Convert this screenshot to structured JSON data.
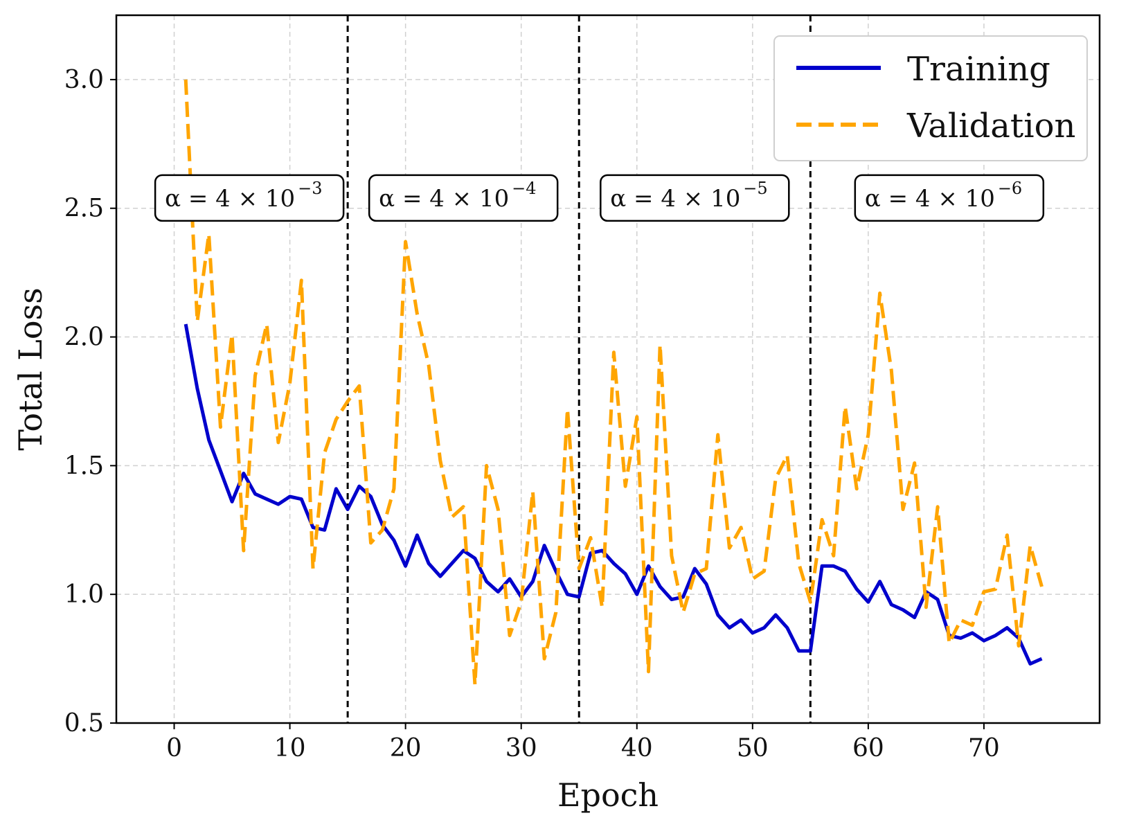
{
  "chart_data": {
    "type": "line",
    "title": "",
    "xlabel": "Epoch",
    "ylabel": "Total Loss",
    "xlim": [
      -5,
      80
    ],
    "ylim": [
      0.5,
      3.25
    ],
    "xticks": [
      "0",
      "10",
      "20",
      "30",
      "40",
      "50",
      "60",
      "70"
    ],
    "xtick_values": [
      0,
      10,
      20,
      30,
      40,
      50,
      60,
      70
    ],
    "yticks": [
      "0.5",
      "1.0",
      "1.5",
      "2.0",
      "2.5",
      "3.0"
    ],
    "ytick_values": [
      0.5,
      1.0,
      1.5,
      2.0,
      2.5,
      3.0
    ],
    "grid": true,
    "legend_position": "top-right",
    "phase_boundaries": [
      15,
      35,
      55
    ],
    "annotations": [
      {
        "text": "α = 4 × 10",
        "exponent": "−3",
        "x_center": 6.5
      },
      {
        "text": "α = 4 × 10",
        "exponent": "−4",
        "x_center": 25
      },
      {
        "text": "α = 4 × 10",
        "exponent": "−5",
        "x_center": 45
      },
      {
        "text": "α = 4 × 10",
        "exponent": "−6",
        "x_center": 67
      },
      {
        "y_value": 2.54
      }
    ],
    "x": [
      1,
      2,
      3,
      4,
      5,
      6,
      7,
      8,
      9,
      10,
      11,
      12,
      13,
      14,
      15,
      16,
      17,
      18,
      19,
      20,
      21,
      22,
      23,
      24,
      25,
      26,
      27,
      28,
      29,
      30,
      31,
      32,
      33,
      34,
      35,
      36,
      37,
      38,
      39,
      40,
      41,
      42,
      43,
      44,
      45,
      46,
      47,
      48,
      49,
      50,
      51,
      52,
      53,
      54,
      55,
      56,
      57,
      58,
      59,
      60,
      61,
      62,
      63,
      64,
      65,
      66,
      67,
      68,
      69,
      70,
      71,
      72,
      73,
      74,
      75
    ],
    "series": [
      {
        "name": "Training",
        "color": "#0000cc",
        "style": "solid",
        "values": [
          2.05,
          1.8,
          1.6,
          1.48,
          1.36,
          1.47,
          1.39,
          1.37,
          1.35,
          1.38,
          1.37,
          1.26,
          1.25,
          1.41,
          1.33,
          1.42,
          1.38,
          1.27,
          1.21,
          1.11,
          1.23,
          1.12,
          1.07,
          1.12,
          1.17,
          1.14,
          1.05,
          1.01,
          1.06,
          0.99,
          1.05,
          1.19,
          1.09,
          1.0,
          0.99,
          1.16,
          1.17,
          1.12,
          1.08,
          1.0,
          1.11,
          1.03,
          0.98,
          0.99,
          1.1,
          1.04,
          0.92,
          0.87,
          0.9,
          0.85,
          0.87,
          0.92,
          0.87,
          0.78,
          0.78,
          1.11,
          1.11,
          1.09,
          1.02,
          0.97,
          1.05,
          0.96,
          0.94,
          0.91,
          1.01,
          0.98,
          0.84,
          0.83,
          0.85,
          0.82,
          0.84,
          0.87,
          0.83,
          0.73,
          0.75
        ]
      },
      {
        "name": "Validation",
        "color": "#ffa500",
        "style": "dashed",
        "values": [
          3.0,
          2.06,
          2.4,
          1.65,
          2.01,
          1.17,
          1.85,
          2.05,
          1.59,
          1.82,
          2.22,
          1.1,
          1.55,
          1.68,
          1.75,
          1.81,
          1.2,
          1.25,
          1.41,
          2.37,
          2.09,
          1.89,
          1.52,
          1.3,
          1.34,
          0.65,
          1.5,
          1.33,
          0.84,
          0.97,
          1.4,
          0.75,
          0.93,
          1.72,
          1.1,
          1.22,
          0.95,
          1.94,
          1.42,
          1.69,
          0.7,
          1.97,
          1.15,
          0.93,
          1.08,
          1.1,
          1.62,
          1.18,
          1.26,
          1.06,
          1.09,
          1.45,
          1.54,
          1.12,
          0.97,
          1.29,
          1.15,
          1.73,
          1.41,
          1.62,
          2.17,
          1.87,
          1.33,
          1.51,
          0.95,
          1.34,
          0.81,
          0.9,
          0.88,
          1.01,
          1.02,
          1.23,
          0.8,
          1.19,
          1.03
        ]
      }
    ]
  }
}
